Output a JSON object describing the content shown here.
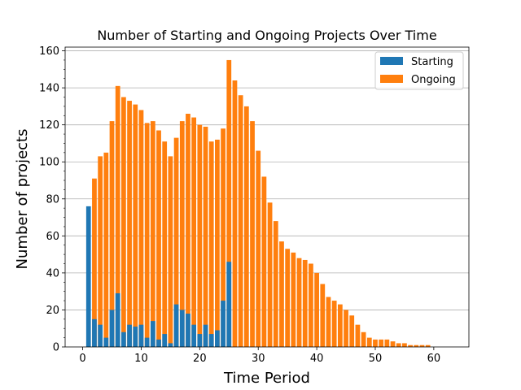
{
  "chart_data": {
    "type": "bar",
    "stacked": false,
    "title": "Number of Starting and Ongoing Projects Over Time",
    "xlabel": "Time Period",
    "ylabel": "Number of projects",
    "xlim": [
      -3,
      66
    ],
    "ylim": [
      0,
      162
    ],
    "xticks": [
      0,
      10,
      20,
      30,
      40,
      50,
      60
    ],
    "yticks": [
      0,
      20,
      40,
      60,
      80,
      100,
      120,
      140,
      160
    ],
    "grid": "y-major",
    "legend_position": "top-right",
    "x": [
      1,
      2,
      3,
      4,
      5,
      6,
      7,
      8,
      9,
      10,
      11,
      12,
      13,
      14,
      15,
      16,
      17,
      18,
      19,
      20,
      21,
      22,
      23,
      24,
      25,
      26,
      27,
      28,
      29,
      30,
      31,
      32,
      33,
      34,
      35,
      36,
      37,
      38,
      39,
      40,
      41,
      42,
      43,
      44,
      45,
      46,
      47,
      48,
      49,
      50,
      51,
      52,
      53,
      54,
      55,
      56,
      57,
      58,
      59
    ],
    "series": [
      {
        "name": "Ongoing",
        "color": "#ff7f0e",
        "values": [
          0,
          91,
          103,
          105,
          122,
          141,
          135,
          133,
          131,
          128,
          121,
          122,
          117,
          111,
          103,
          113,
          122,
          126,
          124,
          120,
          119,
          111,
          112,
          118,
          155,
          144,
          136,
          130,
          122,
          106,
          92,
          78,
          68,
          57,
          53,
          51,
          48,
          47,
          45,
          40,
          34,
          27,
          25,
          23,
          20,
          17,
          12,
          8,
          5,
          4,
          4,
          4,
          3,
          2,
          2,
          1,
          1,
          1,
          1
        ]
      },
      {
        "name": "Starting",
        "color": "#1f77b4",
        "values": [
          76,
          15,
          12,
          5,
          20,
          29,
          8,
          12,
          11,
          12,
          5,
          14,
          4,
          7,
          2,
          23,
          20,
          18,
          12,
          7,
          12,
          7,
          9,
          25,
          46,
          0,
          0,
          0,
          0,
          0,
          0,
          0,
          0,
          0,
          0,
          0,
          0,
          0,
          0,
          0,
          0,
          0,
          0,
          0,
          0,
          0,
          0,
          0,
          0,
          0,
          0,
          0,
          0,
          0,
          0,
          0,
          0,
          0,
          0
        ]
      }
    ],
    "legend": [
      {
        "label": "Starting",
        "color": "#1f77b4"
      },
      {
        "label": "Ongoing",
        "color": "#ff7f0e"
      }
    ]
  }
}
